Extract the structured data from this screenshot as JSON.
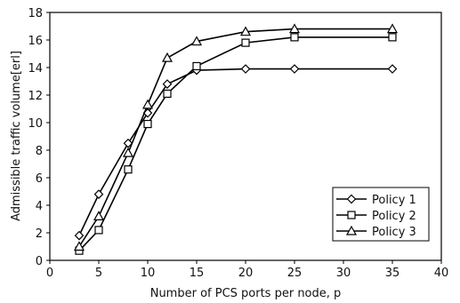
{
  "chart_data": {
    "type": "line",
    "title": "",
    "xlabel": "Number of PCS ports per node, p",
    "ylabel": "Admissible traffic volume[erl]",
    "xlim": [
      0,
      40
    ],
    "ylim": [
      0,
      18
    ],
    "xticks": [
      0,
      5,
      10,
      15,
      20,
      25,
      30,
      35,
      40
    ],
    "yticks": [
      0,
      2,
      4,
      6,
      8,
      10,
      12,
      14,
      16,
      18
    ],
    "grid": false,
    "legend_position": "bottom-right",
    "series": [
      {
        "name": "Policy 1",
        "marker": "diamond",
        "x": [
          3,
          5,
          8,
          10,
          12,
          15,
          20,
          25,
          35
        ],
        "y": [
          1.8,
          4.8,
          8.5,
          10.7,
          12.8,
          13.8,
          13.9,
          13.9,
          13.9
        ]
      },
      {
        "name": "Policy 2",
        "marker": "square",
        "x": [
          3,
          5,
          8,
          10,
          12,
          15,
          20,
          25,
          35
        ],
        "y": [
          0.7,
          2.2,
          6.6,
          9.9,
          12.1,
          14.1,
          15.8,
          16.2,
          16.2
        ]
      },
      {
        "name": "Policy 3",
        "marker": "triangle",
        "x": [
          3,
          5,
          8,
          10,
          12,
          15,
          20,
          25,
          35
        ],
        "y": [
          1.0,
          3.2,
          7.8,
          11.3,
          14.7,
          15.9,
          16.6,
          16.8,
          16.8
        ]
      }
    ]
  }
}
